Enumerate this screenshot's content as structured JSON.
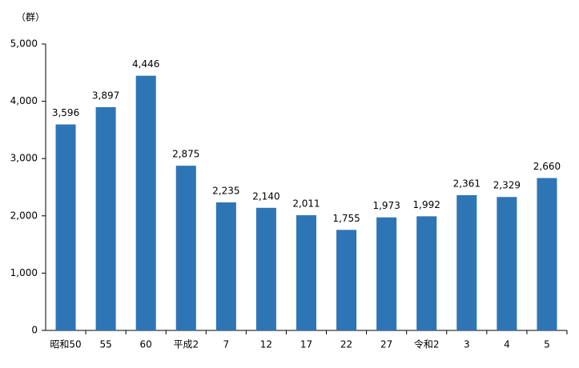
{
  "chart_data": {
    "type": "bar",
    "y_axis_label": "（群）",
    "categories": [
      "昭和50",
      "55",
      "60",
      "平成2",
      "7",
      "12",
      "17",
      "22",
      "27",
      "令和2",
      "3",
      "4",
      "5"
    ],
    "values": [
      3596,
      3897,
      4446,
      2875,
      2235,
      2140,
      2011,
      1755,
      1973,
      1992,
      2361,
      2329,
      2660
    ],
    "value_labels": [
      "3,596",
      "3,897",
      "4,446",
      "2,875",
      "2,235",
      "2,140",
      "2,011",
      "1,755",
      "1,973",
      "1,992",
      "2,361",
      "2,329",
      "2,660"
    ],
    "color": "#2e75b6",
    "ylim": [
      0,
      5000
    ],
    "yticks": [
      0,
      {
        "value": 1000,
        "label": "1,000"
      },
      {
        "value": 2000,
        "label": "2,000"
      },
      {
        "value": 3000,
        "label": "3,000"
      },
      {
        "value": 4000,
        "label": "4,000"
      },
      {
        "value": 5000,
        "label": "5,000"
      }
    ],
    "grid": false
  }
}
